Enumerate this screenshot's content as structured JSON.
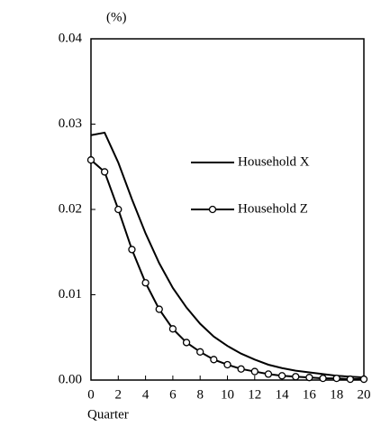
{
  "chart_data": {
    "type": "line",
    "y_unit_label": "(%)",
    "x_label": "Quarter",
    "x": [
      0,
      1,
      2,
      3,
      4,
      5,
      6,
      7,
      8,
      9,
      10,
      11,
      12,
      13,
      14,
      15,
      16,
      17,
      18,
      19,
      20
    ],
    "series": [
      {
        "name": "Household X",
        "color": "#000000",
        "marker": "none",
        "values": [
          0.0287,
          0.029,
          0.0255,
          0.0212,
          0.0172,
          0.0137,
          0.0108,
          0.0085,
          0.0066,
          0.0051,
          0.004,
          0.0031,
          0.0024,
          0.0018,
          0.0014,
          0.0011,
          0.0009,
          0.0007,
          0.0005,
          0.0004,
          0.0003
        ]
      },
      {
        "name": "Household Z",
        "color": "#000000",
        "marker": "circle",
        "values": [
          0.0258,
          0.0244,
          0.02,
          0.0153,
          0.0114,
          0.0083,
          0.006,
          0.0044,
          0.0033,
          0.0024,
          0.0018,
          0.0013,
          0.001,
          0.0007,
          0.0005,
          0.0004,
          0.0003,
          0.0002,
          0.0002,
          0.0001,
          0.0001
        ]
      }
    ],
    "xlim": [
      0,
      20
    ],
    "xticks": [
      0,
      2,
      4,
      6,
      8,
      10,
      12,
      14,
      16,
      18,
      20
    ],
    "ylim": [
      0,
      0.04
    ],
    "yticks": [
      {
        "value": 0,
        "label": "0.00"
      },
      0.01,
      0.02,
      0.03,
      0.04
    ],
    "grid": false,
    "legend": "right"
  }
}
